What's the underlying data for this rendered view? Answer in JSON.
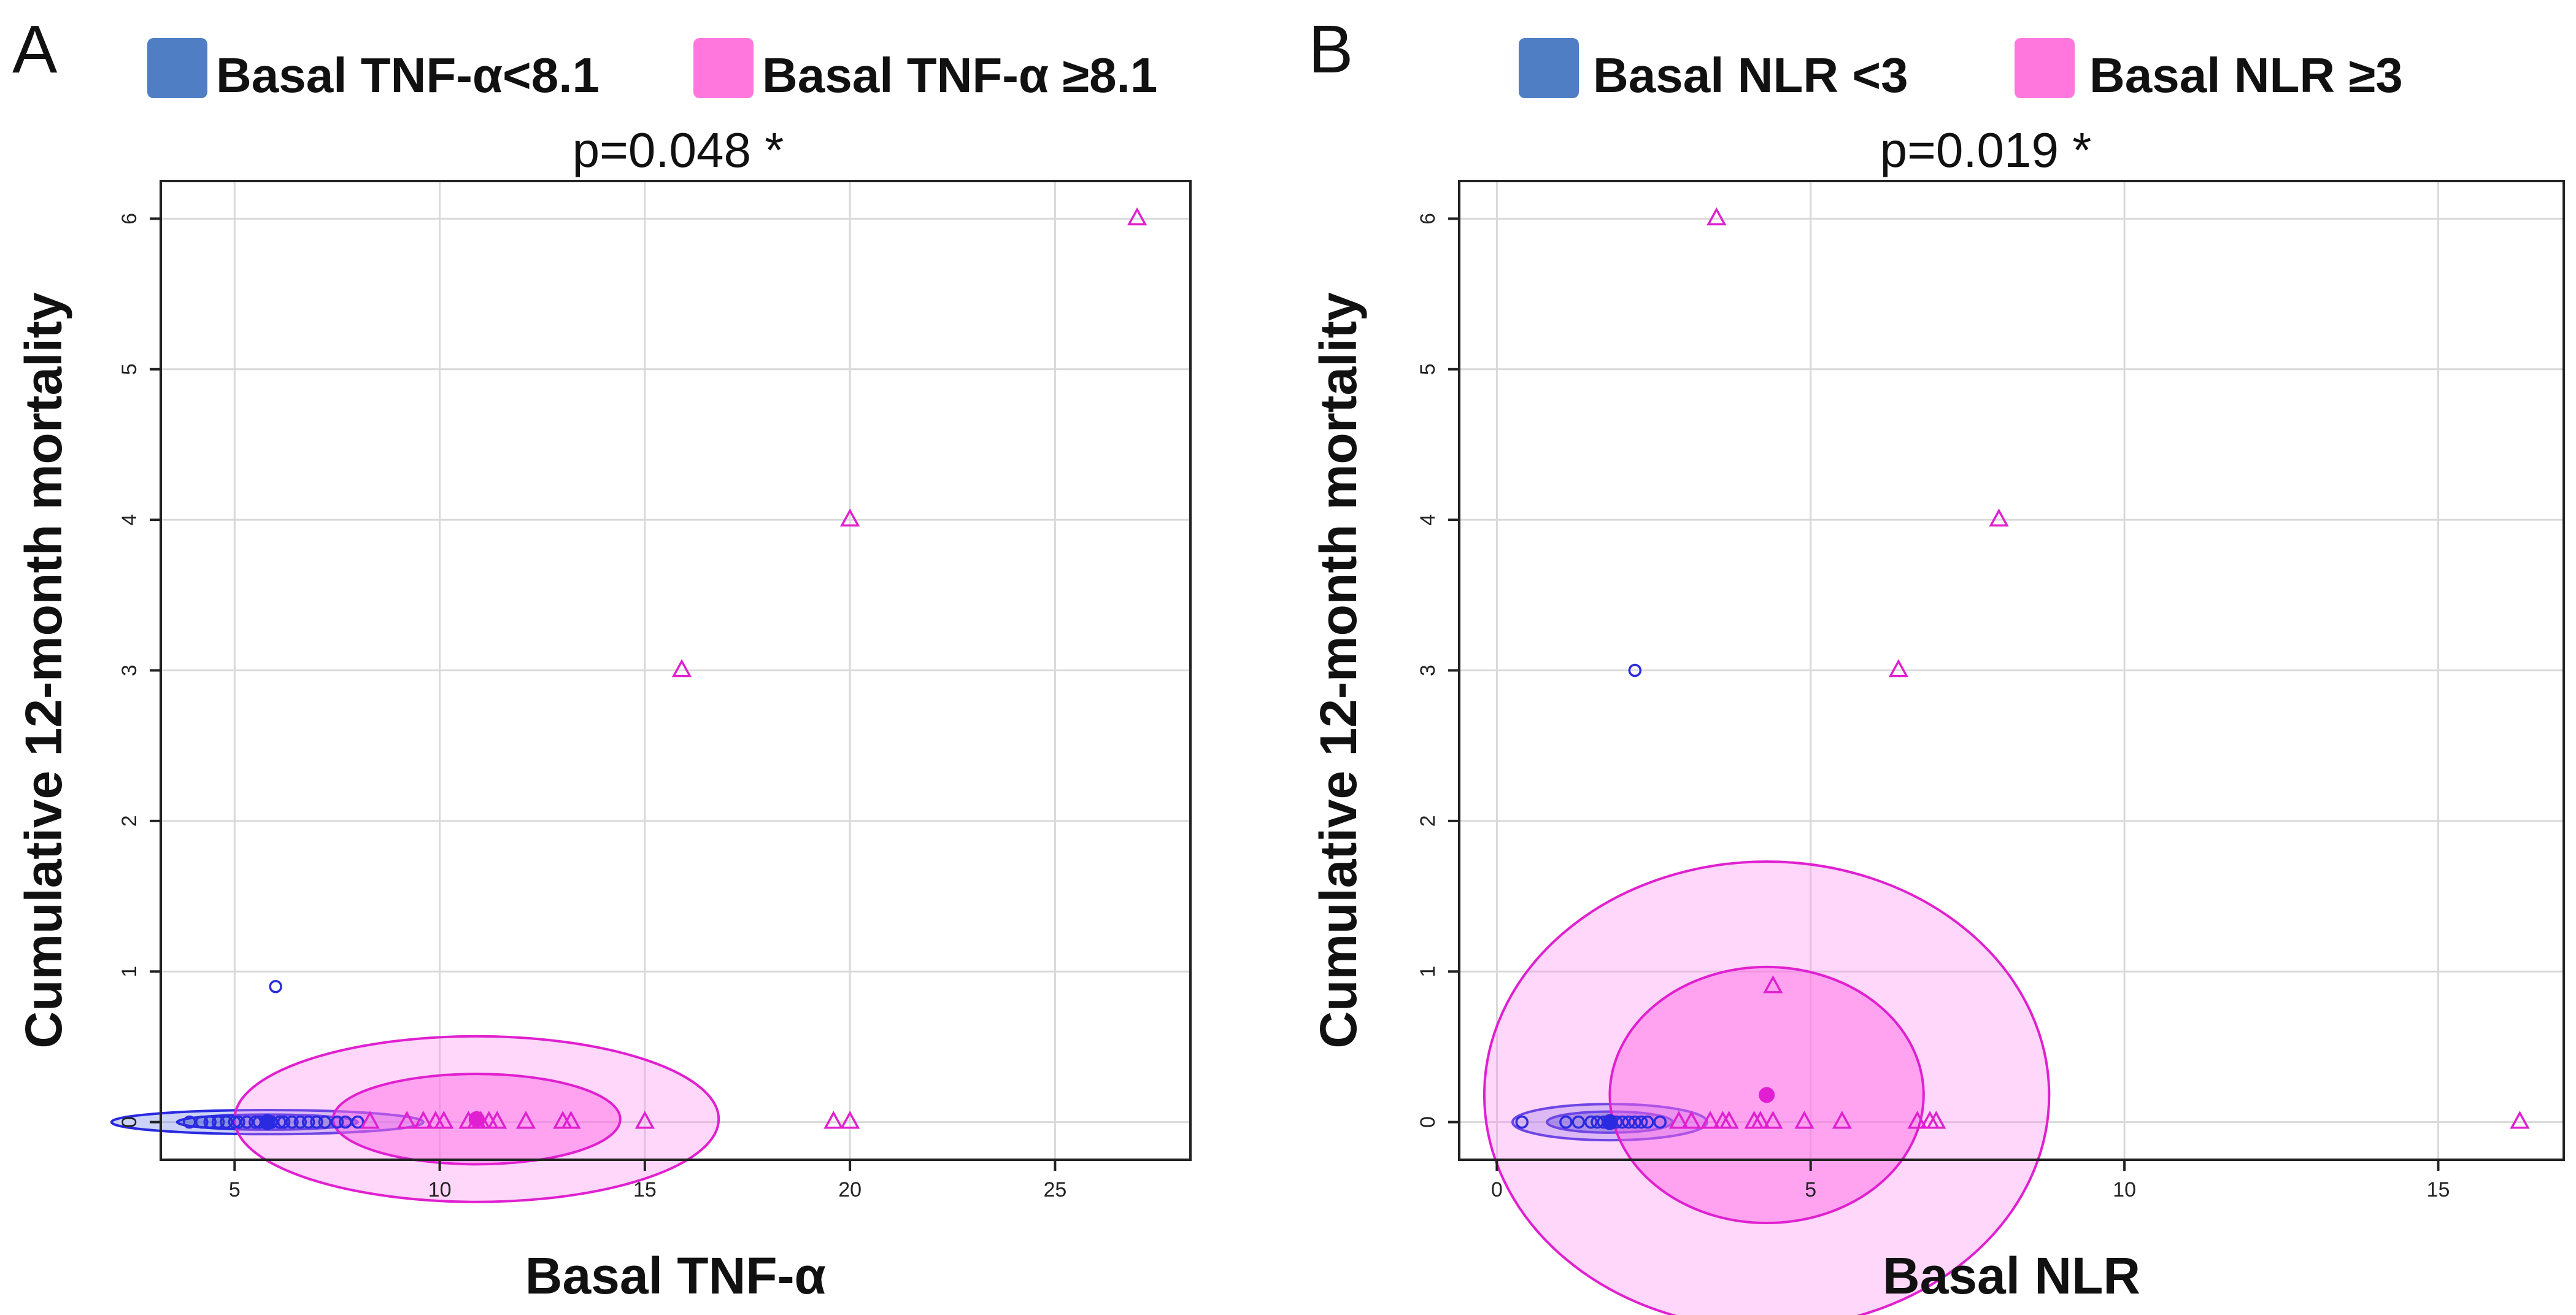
{
  "panels": [
    {
      "letter": "A",
      "p_value": "p=0.048 *",
      "legend": [
        {
          "label": "Basal TNF-α<8.1",
          "color": "#4f7ec4"
        },
        {
          "label": "Basal TNF-α ≥8.1",
          "color": "#ff77dd"
        }
      ]
    },
    {
      "letter": "B",
      "p_value": "p=0.019 *",
      "legend": [
        {
          "label": "Basal NLR <3",
          "color": "#4f7ec4"
        },
        {
          "label": "Basal NLR ≥3",
          "color": "#ff77dd"
        }
      ]
    }
  ],
  "chart_data": [
    {
      "type": "scatter",
      "title": "p=0.048 *",
      "xlabel": "Basal TNF-α",
      "ylabel": "Cumulative 12-month mortality",
      "xlim": [
        3.2,
        28.3
      ],
      "ylim": [
        -0.25,
        6.25
      ],
      "xticks": [
        5,
        10,
        15,
        20,
        25
      ],
      "yticks": [
        0,
        1,
        2,
        3,
        4,
        5,
        6
      ],
      "grid": true,
      "series": [
        {
          "name": "Basal TNF-α<8.1",
          "color": "#2a2ae0",
          "marker": "circle",
          "x": [
            3.9,
            4.2,
            4.4,
            4.6,
            4.8,
            5.0,
            5.1,
            5.3,
            5.5,
            5.6,
            5.8,
            5.9,
            6.1,
            6.2,
            6.4,
            6.6,
            6.8,
            7.0,
            7.2,
            7.5,
            7.7,
            8.0,
            6.0
          ],
          "y": [
            0,
            0,
            0,
            0,
            0,
            0,
            0,
            0,
            0,
            0,
            0,
            0,
            0,
            0,
            0,
            0,
            0,
            0,
            0,
            0,
            0,
            0,
            0.9
          ],
          "center": [
            5.8,
            0.0
          ],
          "ellipses": [
            {
              "rx": 3.8,
              "ry": 0.08,
              "level": "outer"
            },
            {
              "rx": 2.2,
              "ry": 0.05,
              "level": "inner"
            }
          ]
        },
        {
          "name": "Basal TNF-α ≥8.1",
          "color": "#e020d0",
          "marker": "triangle",
          "x": [
            8.3,
            9.2,
            9.6,
            9.9,
            10.1,
            10.7,
            10.9,
            11.0,
            11.2,
            11.4,
            12.1,
            13.0,
            13.2,
            15.0,
            19.6,
            20.0,
            15.9,
            20.0,
            27.0
          ],
          "y": [
            0,
            0,
            0,
            0,
            0,
            0,
            0,
            0,
            0,
            0,
            0,
            0,
            0,
            0,
            0,
            0,
            3,
            4,
            6
          ],
          "center": [
            10.9,
            0.02
          ],
          "ellipses": [
            {
              "rx": 5.9,
              "ry": 0.55,
              "level": "outer"
            },
            {
              "rx": 3.5,
              "ry": 0.3,
              "level": "inner"
            }
          ]
        }
      ]
    },
    {
      "type": "scatter",
      "title": "p=0.019 *",
      "xlabel": "Basal NLR",
      "ylabel": "Cumulative 12-month mortality",
      "xlim": [
        -0.6,
        17.0
      ],
      "ylim": [
        -0.25,
        6.25
      ],
      "xticks": [
        0,
        5,
        10,
        15
      ],
      "yticks": [
        0,
        1,
        2,
        3,
        4,
        5,
        6
      ],
      "grid": true,
      "series": [
        {
          "name": "Basal NLR <3",
          "color": "#2a2ae0",
          "marker": "circle",
          "x": [
            0.4,
            1.1,
            1.3,
            1.5,
            1.6,
            1.7,
            1.8,
            1.9,
            2.0,
            2.1,
            2.2,
            2.3,
            2.4,
            2.6,
            2.2
          ],
          "y": [
            0,
            0,
            0,
            0,
            0,
            0,
            0,
            0,
            0,
            0,
            0,
            0,
            0,
            0,
            3
          ],
          "center": [
            1.8,
            0.0
          ],
          "ellipses": [
            {
              "rx": 1.55,
              "ry": 0.12,
              "level": "outer"
            },
            {
              "rx": 1.0,
              "ry": 0.07,
              "level": "inner"
            }
          ]
        },
        {
          "name": "Basal NLR ≥3",
          "color": "#e020d0",
          "marker": "triangle",
          "x": [
            2.9,
            3.1,
            3.4,
            3.6,
            3.7,
            4.1,
            4.2,
            4.4,
            4.9,
            5.5,
            6.7,
            6.9,
            7.0,
            16.3,
            4.4,
            6.4,
            8.0,
            3.5
          ],
          "y": [
            0,
            0,
            0,
            0,
            0,
            0,
            0,
            0,
            0,
            0,
            0,
            0,
            0,
            0,
            0.9,
            3,
            4,
            6
          ],
          "center": [
            4.3,
            0.18
          ],
          "ellipses": [
            {
              "rx": 4.5,
              "ry": 1.55,
              "level": "outer"
            },
            {
              "rx": 2.5,
              "ry": 0.85,
              "level": "inner"
            }
          ]
        }
      ]
    }
  ]
}
